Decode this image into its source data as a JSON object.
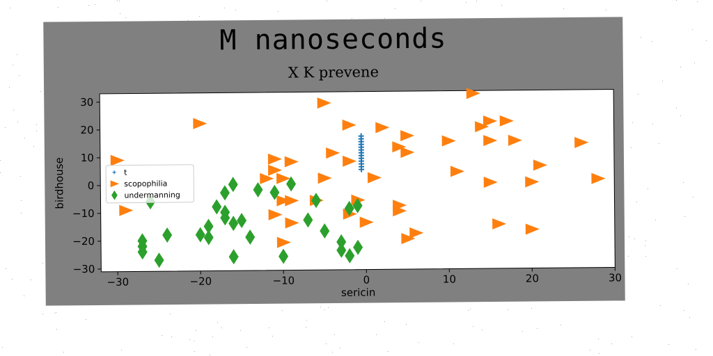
{
  "figure": {
    "title": "M nanoseconds"
  },
  "chart_data": {
    "type": "scatter",
    "title": "X K prevene",
    "xlabel": "sericin",
    "ylabel": "birdhouse",
    "xlim": [
      -32,
      30
    ],
    "ylim": [
      -31,
      33
    ],
    "xticks": [
      -30,
      -20,
      -10,
      0,
      10,
      20,
      30
    ],
    "yticks": [
      -30,
      -20,
      -10,
      0,
      10,
      20,
      30
    ],
    "xtick_labels": [
      "−30",
      "−20",
      "−10",
      "0",
      "10",
      "20",
      "30"
    ],
    "ytick_labels": [
      "−30",
      "−20",
      "−10",
      "0",
      "10",
      "20",
      "30"
    ],
    "grid": false,
    "legend_placement": "center-left",
    "series": [
      {
        "name": "t",
        "marker": "plus",
        "color": "#1f77b4",
        "points": [
          [
            -0.5,
            17
          ],
          [
            -0.5,
            16
          ],
          [
            -0.5,
            15
          ],
          [
            -0.5,
            14
          ],
          [
            -0.5,
            13
          ],
          [
            -0.5,
            12
          ],
          [
            -0.5,
            11
          ],
          [
            -0.5,
            10
          ],
          [
            -0.5,
            9
          ],
          [
            -0.5,
            8
          ],
          [
            -0.5,
            7
          ],
          [
            -0.5,
            6
          ],
          [
            -0.5,
            5
          ]
        ]
      },
      {
        "name": "scopophilia",
        "marker": "triangle-right",
        "color": "#ff7f0e",
        "points": [
          [
            -30,
            9
          ],
          [
            -29,
            -9
          ],
          [
            -20,
            22
          ],
          [
            -5,
            29
          ],
          [
            -2,
            21
          ],
          [
            2,
            20
          ],
          [
            5,
            17
          ],
          [
            4,
            13
          ],
          [
            5,
            11
          ],
          [
            -4,
            11
          ],
          [
            -2,
            8
          ],
          [
            1,
            2
          ],
          [
            -5,
            2
          ],
          [
            -9,
            8
          ],
          [
            -11,
            9
          ],
          [
            -11,
            5
          ],
          [
            -12,
            2
          ],
          [
            -10,
            2
          ],
          [
            -10,
            -6
          ],
          [
            -9,
            -6
          ],
          [
            -6,
            -6
          ],
          [
            -11,
            -11
          ],
          [
            -9,
            -14
          ],
          [
            -10,
            -21
          ],
          [
            -2,
            -11
          ],
          [
            -1,
            -6
          ],
          [
            0,
            -14
          ],
          [
            4,
            -8
          ],
          [
            4,
            -10
          ],
          [
            6,
            -18
          ],
          [
            5,
            -20
          ],
          [
            10,
            15
          ],
          [
            11,
            4
          ],
          [
            13,
            32
          ],
          [
            14,
            20
          ],
          [
            15,
            22
          ],
          [
            15,
            15
          ],
          [
            17,
            22
          ],
          [
            18,
            15
          ],
          [
            21,
            6
          ],
          [
            20,
            0
          ],
          [
            15,
            0
          ],
          [
            16,
            -15
          ],
          [
            20,
            -17
          ],
          [
            26,
            14
          ],
          [
            28,
            1
          ]
        ]
      },
      {
        "name": "undermanning",
        "marker": "diamond",
        "color": "#2ca02c",
        "points": [
          [
            -27,
            -20
          ],
          [
            -27,
            -22
          ],
          [
            -27,
            -24
          ],
          [
            -26,
            -6
          ],
          [
            -25,
            -27
          ],
          [
            -24,
            -18
          ],
          [
            -20,
            -18
          ],
          [
            -19,
            -19
          ],
          [
            -19,
            -15
          ],
          [
            -18,
            -8
          ],
          [
            -17,
            -10
          ],
          [
            -17,
            -12
          ],
          [
            -17,
            -3
          ],
          [
            -16,
            0
          ],
          [
            -16,
            -14
          ],
          [
            -16,
            -26
          ],
          [
            -15,
            -13
          ],
          [
            -14,
            -19
          ],
          [
            -13,
            -2
          ],
          [
            -11,
            -3
          ],
          [
            -10,
            -26
          ],
          [
            -9,
            0
          ],
          [
            -7,
            -13
          ],
          [
            -6,
            -6
          ],
          [
            -5,
            -17
          ],
          [
            -3,
            -21
          ],
          [
            -3,
            -24
          ],
          [
            -2,
            -26
          ],
          [
            -2,
            -9
          ],
          [
            -1,
            -8
          ],
          [
            -1,
            -23
          ]
        ]
      }
    ]
  }
}
